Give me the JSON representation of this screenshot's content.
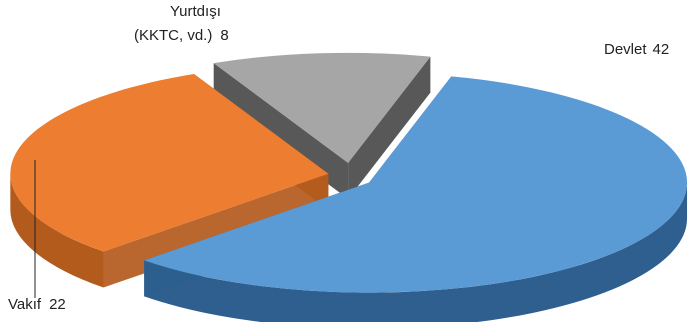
{
  "chart_data": {
    "type": "pie",
    "style": "3d-exploded",
    "slices": [
      {
        "label": "Devlet",
        "value": 42,
        "value_text": "42",
        "color": "#5b9bd5",
        "side_color": "#2e5f8e"
      },
      {
        "label": "Vakıf",
        "value": 22,
        "value_text": "22",
        "color": "#ed7d31",
        "side_color": "#b35a1d"
      },
      {
        "label": "Yurtdışı\n(KKTC, vd.)",
        "label_line1": "Yurtdışı",
        "label_line2": "(KKTC, vd.)",
        "value": 8,
        "value_text": "8",
        "color": "#a6a6a6",
        "side_color": "#4a4a4a"
      }
    ],
    "legend": "none",
    "title": ""
  }
}
